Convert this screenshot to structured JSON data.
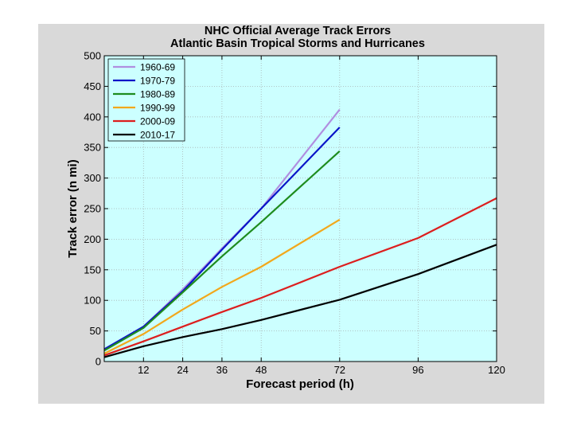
{
  "chart_data": {
    "type": "line",
    "title": "NHC Official Average Track Errors",
    "subtitle": "Atlantic Basin Tropical Storms and Hurricanes",
    "xlabel": "Forecast period (h)",
    "ylabel": "Track error (n mi)",
    "xlim": [
      0,
      120
    ],
    "ylim": [
      0,
      500
    ],
    "xticks": [
      12,
      24,
      36,
      48,
      72,
      96,
      120
    ],
    "yticks": [
      0,
      50,
      100,
      150,
      200,
      250,
      300,
      350,
      400,
      450,
      500
    ],
    "grid": true,
    "legend_position": "top-left",
    "plot_background": "#ccffff",
    "series": [
      {
        "name": "1960-69",
        "color": "#b08ee0",
        "x": [
          0,
          12,
          24,
          36,
          48,
          72
        ],
        "y": [
          20,
          57,
          118,
          185,
          250,
          412
        ]
      },
      {
        "name": "1970-79",
        "color": "#0a14c8",
        "x": [
          0,
          12,
          24,
          36,
          48,
          72
        ],
        "y": [
          20,
          57,
          115,
          183,
          250,
          383
        ]
      },
      {
        "name": "1980-89",
        "color": "#1e8c1e",
        "x": [
          0,
          12,
          24,
          36,
          48,
          72
        ],
        "y": [
          18,
          55,
          113,
          172,
          228,
          344
        ]
      },
      {
        "name": "1990-99",
        "color": "#f2a81c",
        "x": [
          0,
          12,
          24,
          36,
          48,
          72
        ],
        "y": [
          13,
          45,
          85,
          122,
          155,
          232
        ]
      },
      {
        "name": "2000-09",
        "color": "#dc1e1e",
        "x": [
          0,
          12,
          24,
          36,
          48,
          72,
          96,
          120
        ],
        "y": [
          10,
          33,
          57,
          81,
          104,
          155,
          202,
          267
        ]
      },
      {
        "name": "2010-17",
        "color": "#000000",
        "x": [
          0,
          12,
          24,
          36,
          48,
          72,
          96,
          120
        ],
        "y": [
          7,
          25,
          40,
          53,
          68,
          101,
          143,
          191
        ]
      }
    ]
  }
}
